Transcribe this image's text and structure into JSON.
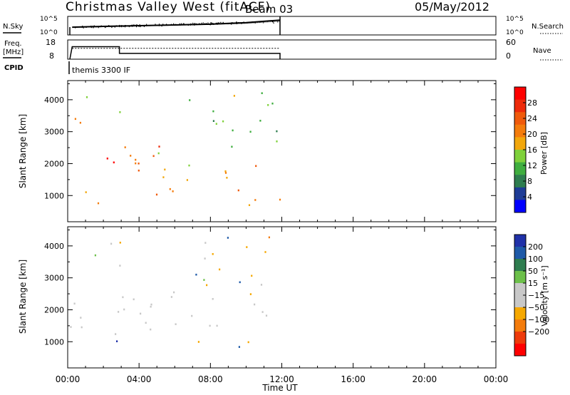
{
  "header": {
    "station": "Christmas Valley West (fitACF)",
    "beam": "Beam 03",
    "date": "05/May/2012"
  },
  "colors": {
    "power_scale": [
      "#0000ff",
      "#1e3c96",
      "#2e7d4f",
      "#3fae3f",
      "#7fd13b",
      "#f2a70c",
      "#f47c0c",
      "#f05a0b",
      "#ee2a0a",
      "#ff0000"
    ],
    "velocity_scale": [
      "#2031a8",
      "#1f5aa8",
      "#2e7d4f",
      "#6cc04a",
      "#c8c8c8",
      "#c8c8c8",
      "#f6a800",
      "#f47c0c",
      "#ee3a0a",
      "#ff0000"
    ],
    "ground_scatter": "#c8c8c8"
  },
  "chart_data": [
    {
      "type": "line",
      "panel": "nsky-nsearch",
      "left_label": "N.Sky",
      "right_label": "N.Search",
      "left_ticks": [
        "10^5",
        "10^0"
      ],
      "right_ticks": [
        "10^5",
        "10^0"
      ],
      "x": [
        0.25,
        2,
        4,
        6,
        8,
        10,
        11.9
      ],
      "series": [
        {
          "name": "N.Sky",
          "values": [
            2.1,
            2.3,
            2.5,
            2.7,
            2.9,
            3.3,
            4.0
          ]
        },
        {
          "name": "N.Search",
          "values": [
            2.0,
            2.2,
            2.4,
            2.6,
            2.8,
            3.1,
            3.7
          ]
        }
      ],
      "ylim": [
        0,
        5
      ]
    },
    {
      "type": "line",
      "panel": "freq-nave",
      "left_label": "Freq.",
      "left_unit": "[MHz]",
      "right_label": "Nave",
      "left_ticks": [
        "18",
        "8"
      ],
      "right_ticks": [
        "60",
        "0"
      ],
      "series": [
        {
          "name": "Freq.",
          "x": [
            0.25,
            2.9,
            2.9,
            11.9
          ],
          "values": [
            14.5,
            14.5,
            11.0,
            11.0
          ]
        },
        {
          "name": "Nave",
          "x": [
            0.25,
            11.9
          ],
          "values": [
            34,
            34
          ]
        }
      ],
      "ylim_left": [
        8,
        18
      ],
      "ylim_right": [
        0,
        60
      ]
    },
    {
      "type": "table",
      "panel": "cpid",
      "label": "CPID",
      "value": "themis 3300 IF"
    },
    {
      "type": "scatter",
      "panel": "power",
      "ylabel": "Slant Range [km]",
      "yticks": [
        1000,
        2000,
        3000,
        4000
      ],
      "ylim": [
        180,
        4600
      ],
      "xlim": [
        0,
        24
      ],
      "colorbar": {
        "label": "Power [dB]",
        "ticks": [
          28,
          24,
          20,
          16,
          12,
          8,
          4
        ],
        "range": [
          0,
          32
        ]
      },
      "echo_bands": [
        {
          "t0": 0.1,
          "t1": 2.6,
          "r0": 1550,
          "r1": 2200,
          "value": 30
        },
        {
          "t0": 0.2,
          "t1": 2.4,
          "r0": 700,
          "r1": 1350,
          "value": 18
        },
        {
          "t0": 2.8,
          "t1": 6.0,
          "r0": 1000,
          "r1": 1500,
          "value": 27
        },
        {
          "t0": 5.5,
          "t1": 11.9,
          "r0": 700,
          "r1": 1200,
          "value": 22
        },
        {
          "t0": 3.0,
          "t1": 11.9,
          "r0": 1500,
          "r1": 2600,
          "value": 20
        },
        {
          "t0": 3.0,
          "t1": 7.0,
          "r0": 2000,
          "r1": 2600,
          "value": 24
        },
        {
          "t0": 6.0,
          "t1": 11.9,
          "r0": 2500,
          "r1": 4300,
          "value": 12
        },
        {
          "t0": 0.2,
          "t1": 3.0,
          "r0": 3300,
          "r1": 4200,
          "value": 18
        }
      ]
    },
    {
      "type": "scatter",
      "panel": "velocity",
      "ylabel": "Slant Range [km]",
      "yticks": [
        1000,
        2000,
        3000,
        4000
      ],
      "ylim": [
        180,
        4600
      ],
      "xlim": [
        0,
        24
      ],
      "xticks": [
        "00:00",
        "04:00",
        "08:00",
        "12:00",
        "16:00",
        "20:00",
        "00:00"
      ],
      "xlabel": "Time UT",
      "colorbar": {
        "label": "Velocity [m s⁻¹]",
        "ticks": [
          "200",
          "100",
          "50",
          "15",
          "−15",
          "−50",
          "−100",
          "−200"
        ]
      },
      "echo_bands": [
        {
          "t0": 0.1,
          "t1": 6.0,
          "r0": 1000,
          "r1": 2300,
          "value": "ground"
        },
        {
          "t0": 3.0,
          "t1": 11.9,
          "r0": 1500,
          "r1": 2600,
          "value": "ground"
        },
        {
          "t0": 6.5,
          "t1": 11.9,
          "r0": 700,
          "r1": 1100,
          "value": -40
        },
        {
          "t0": 6.0,
          "t1": 11.9,
          "r0": 2500,
          "r1": 4300,
          "value": -30
        },
        {
          "t0": 0.2,
          "t1": 3.0,
          "r0": 3300,
          "r1": 4200,
          "value": -20
        }
      ]
    }
  ]
}
